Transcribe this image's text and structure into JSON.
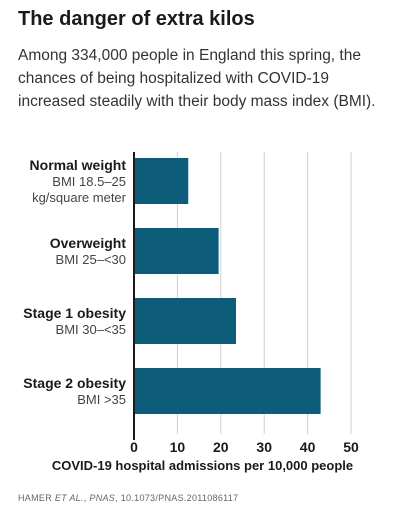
{
  "title": "The danger of extra kilos",
  "subtitle": "Among 334,000 people in England this spring, the chances of being hospitalized with COVID-19 increased steadily with their body mass index (BMI).",
  "source": {
    "prefix": "HAMER ",
    "etal": "ET AL.",
    "sep": ", ",
    "journal": "PNAS",
    "suffix": ", 10.1073/PNAS.2011086117"
  },
  "colors": {
    "bar": "#0d5c7a",
    "grid": "#cfcfcf",
    "axis": "#1a1a1a"
  },
  "chart_data": {
    "type": "bar",
    "orientation": "horizontal",
    "categories": [
      {
        "name": "Normal weight",
        "sub": [
          "BMI 18.5–25",
          "kg/square meter"
        ]
      },
      {
        "name": "Overweight",
        "sub": [
          "BMI 25–<30"
        ]
      },
      {
        "name": "Stage 1 obesity",
        "sub": [
          "BMI 30–<35"
        ]
      },
      {
        "name": "Stage 2 obesity",
        "sub": [
          "BMI >35"
        ]
      }
    ],
    "values": [
      12.5,
      19.5,
      23.5,
      43
    ],
    "xlim": [
      0,
      50
    ],
    "xticks": [
      0,
      10,
      20,
      30,
      40,
      50
    ],
    "xlabel": "COVID-19 hospital admissions per 10,000 people",
    "grid": true
  }
}
